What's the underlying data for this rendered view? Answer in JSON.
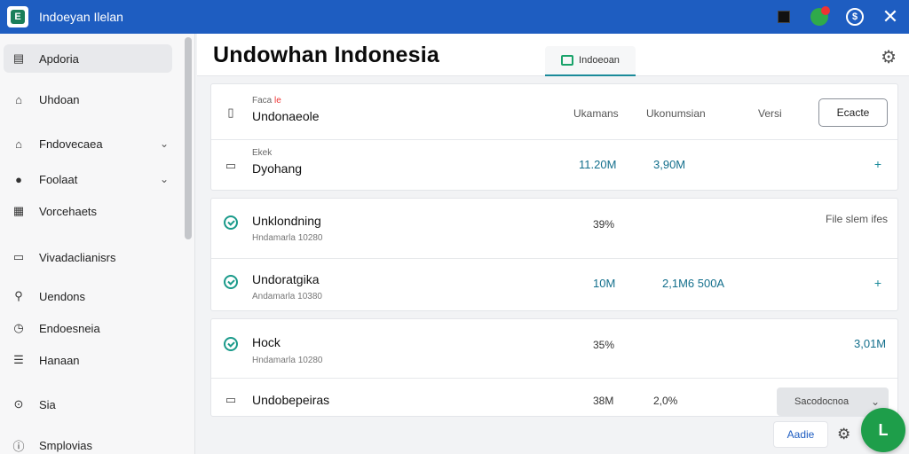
{
  "window": {
    "title": "Indoeyan Ilelan",
    "logo_glyph": "E",
    "circle_glyph": "$",
    "close_glyph": "✕"
  },
  "sidebar": {
    "items": [
      {
        "label": "Apdoria",
        "icon": "document-icon",
        "glyph": "▤",
        "active": true,
        "chevron": false
      },
      {
        "label": "Uhdoan",
        "icon": "home-icon",
        "glyph": "⌂",
        "active": false,
        "chevron": false
      },
      {
        "label": "Fndovecaea",
        "icon": "tag-icon",
        "glyph": "⌂",
        "active": false,
        "chevron": true
      },
      {
        "label": "Foolaat",
        "icon": "user-icon",
        "glyph": "●",
        "active": false,
        "chevron": true
      },
      {
        "label": "Vorcehaets",
        "icon": "calendar-icon",
        "glyph": "▦",
        "active": false,
        "chevron": false
      },
      {
        "label": "Vivadaclianisrs",
        "icon": "folder-icon",
        "glyph": "▭",
        "active": false,
        "chevron": false
      },
      {
        "label": "Uendons",
        "icon": "search-icon",
        "glyph": "⚲",
        "active": false,
        "chevron": false
      },
      {
        "label": "Endoesneia",
        "icon": "clock-icon",
        "glyph": "◷",
        "active": false,
        "chevron": false
      },
      {
        "label": "Hanaan",
        "icon": "list-icon",
        "glyph": "☰",
        "active": false,
        "chevron": false
      },
      {
        "label": "Sia",
        "icon": "location-icon",
        "glyph": "⊙",
        "active": false,
        "chevron": false
      },
      {
        "label": "Smplovias",
        "icon": "info-icon",
        "glyph": "ⓘ",
        "active": false,
        "chevron": false
      }
    ]
  },
  "header": {
    "title": "Undowhan Indonesia",
    "tab_label": "Indoeoan",
    "gear_glyph": "⚙"
  },
  "card1": {
    "header_small": "Faca",
    "header_small_red": "le",
    "header_name": "Undonaeole",
    "col_headers": [
      "Ukamans",
      "Ukonumsian",
      "Versi"
    ],
    "button_label": "Ecacte",
    "row_small": "Ekek",
    "row_name": "Dyohang",
    "row_values": [
      "11.20M",
      "3,90M"
    ],
    "plus_glyph": "+"
  },
  "card2": {
    "right_header": "File slem ifes",
    "rows": [
      {
        "name": "Unklondning",
        "sub": "Hndamarla 10280",
        "values": [
          "39%"
        ],
        "plus": false
      },
      {
        "name": "Undoratgika",
        "sub": "Andamarla 10380",
        "values": [
          "10M",
          "2,1M6 500A"
        ],
        "plus": true
      }
    ]
  },
  "card3": {
    "rows": [
      {
        "name": "Hock",
        "sub": "Hndamarla 10280",
        "values": [
          "35%"
        ],
        "right_value": "3,01M"
      },
      {
        "name": "Undobepeiras",
        "values": [
          "38M",
          "2,0%"
        ],
        "select_value": "Sacodocnoa"
      }
    ]
  },
  "bottom": {
    "button_label": "Aadie",
    "fab_glyph": "L"
  },
  "colors": {
    "titlebar": "#1e5dc1",
    "accent_teal": "#136f8c",
    "fab_green": "#1e9e4a"
  }
}
